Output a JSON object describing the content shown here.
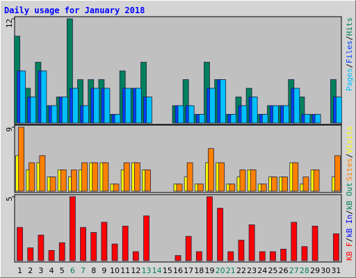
{
  "legend_separator": "/",
  "chart_data": [
    {
      "type": "bar",
      "title": "Daily usage for January 2018",
      "ylim": [
        0,
        12
      ],
      "yticks": [
        12
      ],
      "series": [
        {
          "name": "Hits",
          "color": "#00805c",
          "values": [
            10,
            4,
            7,
            2,
            3,
            12,
            5,
            5,
            5,
            1,
            6,
            4,
            7,
            0,
            0,
            2,
            5,
            1,
            7,
            5,
            1,
            3,
            4,
            1,
            2,
            2,
            5,
            3,
            1,
            0,
            5
          ]
        },
        {
          "name": "Files",
          "color": "#0040ff",
          "values": [
            6,
            3,
            6,
            2,
            3,
            4,
            2,
            4,
            4,
            1,
            4,
            4,
            3,
            0,
            0,
            2,
            2,
            1,
            4,
            5,
            1,
            2,
            3,
            1,
            2,
            2,
            4,
            1,
            1,
            0,
            3
          ]
        },
        {
          "name": "Pages",
          "color": "#00c0ff",
          "values": [
            6,
            3,
            6,
            2,
            3,
            4,
            2,
            4,
            4,
            1,
            4,
            4,
            3,
            0,
            0,
            2,
            2,
            1,
            4,
            5,
            1,
            2,
            3,
            1,
            2,
            2,
            4,
            1,
            1,
            0,
            3
          ]
        }
      ]
    },
    {
      "type": "bar",
      "ylim": [
        0,
        9
      ],
      "yticks": [
        9
      ],
      "series": [
        {
          "name": "Visits",
          "color": "#ffff00",
          "values": [
            5,
            3,
            4,
            2,
            3,
            2,
            3,
            4,
            4,
            1,
            3,
            4,
            3,
            0,
            0,
            1,
            2,
            1,
            4,
            4,
            1,
            2,
            3,
            1,
            2,
            2,
            4,
            1,
            3,
            0,
            2
          ]
        },
        {
          "name": "Sites",
          "color": "#ff8000",
          "values": [
            9,
            4,
            5,
            2,
            3,
            3,
            4,
            4,
            4,
            1,
            4,
            4,
            3,
            0,
            0,
            1,
            4,
            1,
            6,
            4,
            1,
            3,
            3,
            1,
            2,
            2,
            4,
            2,
            3,
            0,
            5
          ]
        }
      ]
    },
    {
      "type": "bar",
      "ylim": [
        0,
        5
      ],
      "yticks": [
        5
      ],
      "categories": [
        "1",
        "2",
        "3",
        "4",
        "5",
        "6",
        "7",
        "8",
        "9",
        "10",
        "11",
        "12",
        "13",
        "14",
        "15",
        "16",
        "17",
        "18",
        "19",
        "20",
        "21",
        "22",
        "23",
        "24",
        "25",
        "26",
        "27",
        "28",
        "29",
        "30",
        "31"
      ],
      "highlight_categories": [
        "6",
        "7",
        "13",
        "14",
        "20",
        "21",
        "27",
        "28"
      ],
      "highlight_color": "#00805c",
      "series": [
        {
          "name": "KB F",
          "color": "#ff0000",
          "values": [
            2.6,
            1.0,
            2.0,
            0.8,
            1.4,
            5.0,
            2.6,
            2.2,
            3.0,
            1.3,
            2.7,
            0.7,
            3.5,
            0,
            0,
            0.4,
            1.9,
            0.7,
            5.0,
            4.1,
            0.7,
            1.6,
            2.8,
            0.7,
            0.7,
            0.9,
            3.0,
            1.1,
            2.7,
            0,
            2.1
          ]
        }
      ],
      "legend_extra": [
        {
          "name": "kB In",
          "color": "#0000ff"
        },
        {
          "name": "kB Out",
          "color": "#00805c"
        }
      ]
    }
  ]
}
